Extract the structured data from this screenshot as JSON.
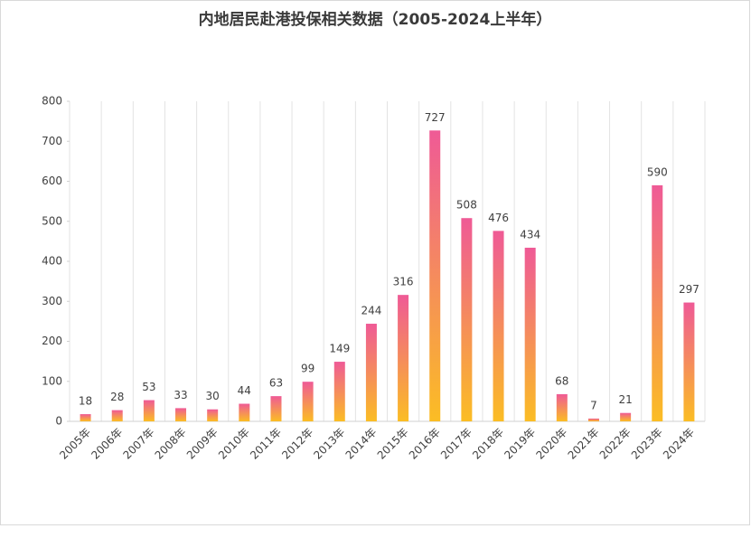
{
  "chart_data": {
    "type": "bar",
    "title": "内地居民赴港投保相关数据（2005-2024上半年）",
    "categories": [
      "2005年",
      "2006年",
      "2007年",
      "2008年",
      "2009年",
      "2010年",
      "2011年",
      "2012年",
      "2013年",
      "2014年",
      "2015年",
      "2016年",
      "2017年",
      "2018年",
      "2019年",
      "2020年",
      "2021年",
      "2022年",
      "2023年",
      "2024年"
    ],
    "values": [
      18,
      28,
      53,
      33,
      30,
      44,
      63,
      99,
      149,
      244,
      316,
      727,
      508,
      476,
      434,
      68,
      7,
      21,
      590,
      297
    ],
    "gradient": [
      "#fbbd24",
      "#ef5a96"
    ],
    "ylim": [
      0,
      800
    ],
    "yticks": [
      0,
      100,
      200,
      300,
      400,
      500,
      600,
      700,
      800
    ]
  }
}
